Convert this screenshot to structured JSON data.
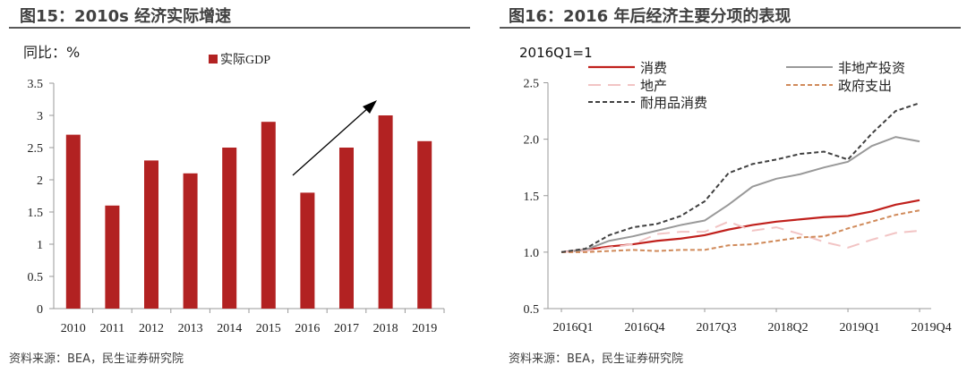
{
  "chart_data": [
    {
      "type": "bar",
      "title": "图15：2010s 经济实际增速",
      "ylabel": "同比：%",
      "legend": [
        "实际GDP"
      ],
      "legend_placement": "top-center",
      "categories": [
        "2010",
        "2011",
        "2012",
        "2013",
        "2014",
        "2015",
        "2016",
        "2017",
        "2018",
        "2019"
      ],
      "series": [
        {
          "name": "实际GDP",
          "values": [
            2.7,
            1.6,
            2.3,
            2.1,
            2.5,
            2.9,
            1.8,
            2.5,
            3.0,
            2.6
          ]
        }
      ],
      "ylim": [
        0,
        3.5
      ],
      "yticks": [
        "0",
        "0.5",
        "1",
        "1.5",
        "2",
        "2.5",
        "3",
        "3.5"
      ],
      "annotation": "upward arrow from 2016 to 2018",
      "color": "#b22222",
      "source": "资料来源：BEA，民生证券研究院"
    },
    {
      "type": "line",
      "title": "图16：2016 年后经济主要分项的表现",
      "ylabel": "2016Q1=1",
      "legend_placement": "top",
      "x": [
        "2016Q1",
        "2016Q2",
        "2016Q3",
        "2016Q4",
        "2017Q1",
        "2017Q2",
        "2017Q3",
        "2017Q4",
        "2018Q1",
        "2018Q2",
        "2018Q3",
        "2018Q4",
        "2019Q1",
        "2019Q2",
        "2019Q3",
        "2019Q4"
      ],
      "xticks": [
        "2016Q1",
        "2016Q4",
        "2017Q3",
        "2018Q2",
        "2019Q1",
        "2019Q4"
      ],
      "ylim": [
        0.5,
        2.5
      ],
      "yticks": [
        "0.5",
        "1.0",
        "1.5",
        "2.0",
        "2.5"
      ],
      "series": [
        {
          "name": "消费",
          "color": "#c0201c",
          "dash": "",
          "width": 2.2,
          "values": [
            1.0,
            1.02,
            1.05,
            1.07,
            1.1,
            1.12,
            1.15,
            1.2,
            1.24,
            1.27,
            1.29,
            1.31,
            1.32,
            1.36,
            1.42,
            1.46
          ]
        },
        {
          "name": "非地产投资",
          "color": "#999999",
          "dash": "",
          "width": 2,
          "values": [
            1.0,
            1.02,
            1.1,
            1.14,
            1.19,
            1.24,
            1.28,
            1.42,
            1.58,
            1.65,
            1.69,
            1.75,
            1.8,
            1.94,
            2.02,
            1.98
          ]
        },
        {
          "name": "地产",
          "color": "#f2c4c4",
          "dash": "14,8",
          "width": 2,
          "values": [
            1.0,
            1.01,
            1.04,
            1.07,
            1.16,
            1.18,
            1.18,
            1.27,
            1.19,
            1.22,
            1.16,
            1.09,
            1.04,
            1.11,
            1.17,
            1.19
          ]
        },
        {
          "name": "政府支出",
          "color": "#d08a5a",
          "dash": "5,3",
          "width": 2,
          "values": [
            1.0,
            1.0,
            1.01,
            1.02,
            1.01,
            1.02,
            1.02,
            1.06,
            1.07,
            1.1,
            1.13,
            1.14,
            1.21,
            1.27,
            1.33,
            1.37
          ]
        },
        {
          "name": "耐用品消费",
          "color": "#404040",
          "dash": "5,3",
          "width": 2,
          "values": [
            1.0,
            1.03,
            1.15,
            1.22,
            1.25,
            1.32,
            1.45,
            1.7,
            1.78,
            1.82,
            1.87,
            1.89,
            1.82,
            2.05,
            2.25,
            2.32
          ]
        }
      ],
      "source": "资料来源：BEA，民生证券研究院"
    }
  ]
}
